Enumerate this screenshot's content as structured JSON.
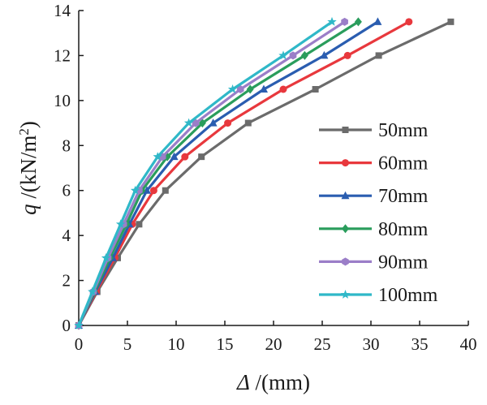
{
  "chart_data": {
    "type": "line",
    "title": "",
    "xlabel": {
      "symbol": "Δ",
      "unit": " /(mm)"
    },
    "ylabel": {
      "symbol": "q",
      "unit_prefix": "  /(kN/m",
      "unit_sup": "2",
      "unit_suffix": ")"
    },
    "xlim": [
      0,
      40
    ],
    "ylim": [
      0,
      14
    ],
    "xticks": [
      0,
      5,
      10,
      15,
      20,
      25,
      30,
      35,
      40
    ],
    "yticks": [
      0,
      2,
      4,
      6,
      8,
      10,
      12,
      14
    ],
    "grid": false,
    "legend_position": "right",
    "y_values": [
      0,
      1.5,
      3,
      4.5,
      6,
      7.5,
      9,
      10.5,
      12,
      13.5
    ],
    "series": [
      {
        "name": "50mm",
        "color": "#6b6b6b",
        "marker": "square",
        "x": [
          0,
          1.9,
          4.0,
          6.2,
          8.9,
          12.6,
          17.4,
          24.3,
          30.8,
          38.2
        ]
      },
      {
        "name": "60mm",
        "color": "#e8383d",
        "marker": "circle",
        "x": [
          0,
          1.8,
          3.7,
          5.5,
          7.7,
          10.9,
          15.3,
          21.0,
          27.6,
          33.9
        ]
      },
      {
        "name": "70mm",
        "color": "#2a5db0",
        "marker": "triangle",
        "x": [
          0,
          1.7,
          3.5,
          5.2,
          7.0,
          9.8,
          13.8,
          19.0,
          25.2,
          30.7
        ]
      },
      {
        "name": "80mm",
        "color": "#2a9d5c",
        "marker": "diamond",
        "x": [
          0,
          1.6,
          3.2,
          4.9,
          6.5,
          9.1,
          12.7,
          17.6,
          23.2,
          28.7
        ]
      },
      {
        "name": "90mm",
        "color": "#9b7ec8",
        "marker": "hexagon",
        "x": [
          0,
          1.5,
          3.0,
          4.6,
          6.2,
          8.6,
          12.0,
          16.6,
          22.0,
          27.3
        ]
      },
      {
        "name": "100mm",
        "color": "#2fb8c8",
        "marker": "star",
        "x": [
          0,
          1.4,
          2.8,
          4.3,
          5.8,
          8.1,
          11.3,
          15.8,
          21.0,
          26.0
        ]
      }
    ]
  }
}
